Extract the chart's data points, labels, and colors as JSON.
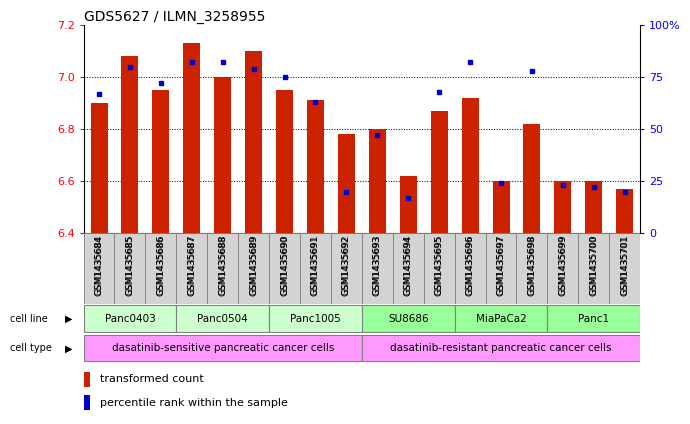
{
  "title": "GDS5627 / ILMN_3258955",
  "samples": [
    "GSM1435684",
    "GSM1435685",
    "GSM1435686",
    "GSM1435687",
    "GSM1435688",
    "GSM1435689",
    "GSM1435690",
    "GSM1435691",
    "GSM1435692",
    "GSM1435693",
    "GSM1435694",
    "GSM1435695",
    "GSM1435696",
    "GSM1435697",
    "GSM1435698",
    "GSM1435699",
    "GSM1435700",
    "GSM1435701"
  ],
  "transformed_count": [
    6.9,
    7.08,
    6.95,
    7.13,
    7.0,
    7.1,
    6.95,
    6.91,
    6.78,
    6.8,
    6.62,
    6.87,
    6.92,
    6.6,
    6.82,
    6.6,
    6.6,
    6.57
  ],
  "percentile": [
    67,
    80,
    72,
    82,
    82,
    79,
    75,
    63,
    20,
    47,
    17,
    68,
    82,
    24,
    78,
    23,
    22,
    20
  ],
  "cell_lines": [
    {
      "name": "Panc0403",
      "start": 0,
      "end": 3,
      "color": "#ccffcc"
    },
    {
      "name": "Panc0504",
      "start": 3,
      "end": 6,
      "color": "#ccffcc"
    },
    {
      "name": "Panc1005",
      "start": 6,
      "end": 9,
      "color": "#ccffcc"
    },
    {
      "name": "SU8686",
      "start": 9,
      "end": 12,
      "color": "#99ff99"
    },
    {
      "name": "MiaPaCa2",
      "start": 12,
      "end": 15,
      "color": "#99ff99"
    },
    {
      "name": "Panc1",
      "start": 15,
      "end": 18,
      "color": "#99ff99"
    }
  ],
  "cell_types": [
    {
      "name": "dasatinib-sensitive pancreatic cancer cells",
      "start": 0,
      "end": 9
    },
    {
      "name": "dasatinib-resistant pancreatic cancer cells",
      "start": 9,
      "end": 18
    }
  ],
  "cell_type_color": "#ff99ff",
  "ylim": [
    6.4,
    7.2
  ],
  "yticks": [
    6.4,
    6.6,
    6.8,
    7.0,
    7.2
  ],
  "right_yticks": [
    0,
    25,
    50,
    75,
    100
  ],
  "bar_color": "#cc2200",
  "percentile_color": "#0000cc",
  "bg_color": "#ffffff",
  "bar_width": 0.55
}
